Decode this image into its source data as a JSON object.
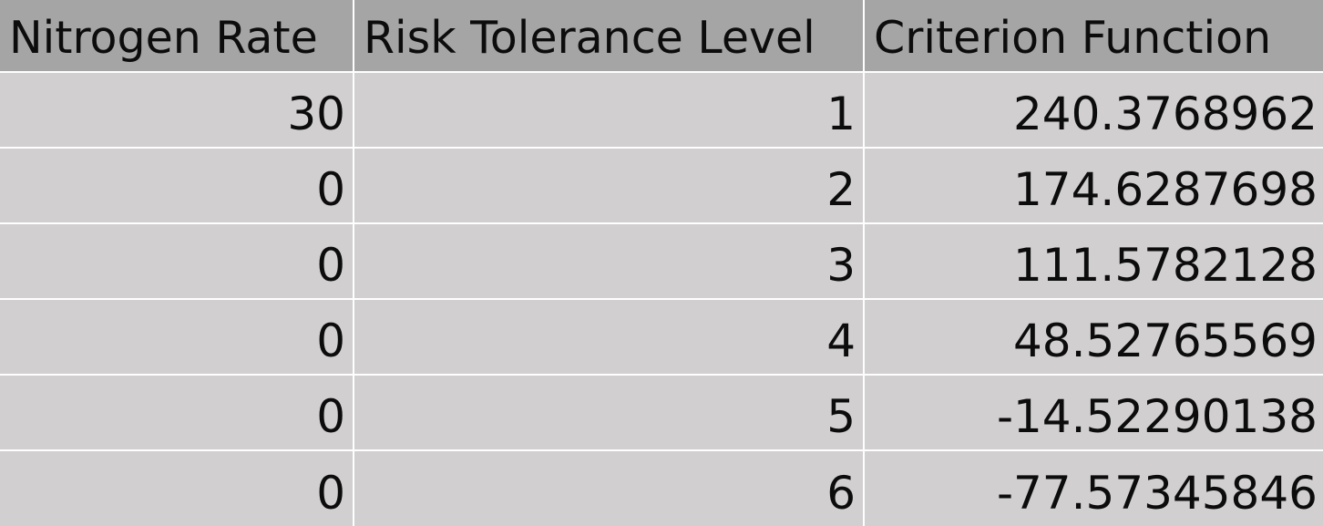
{
  "table": {
    "headers": [
      "Nitrogen Rate",
      "Risk Tolerance Level",
      "Criterion Function"
    ],
    "rows": [
      [
        "30",
        "1",
        "240.3768962"
      ],
      [
        "0",
        "2",
        "174.6287698"
      ],
      [
        "0",
        "3",
        "111.5782128"
      ],
      [
        "0",
        "4",
        "48.52765569"
      ],
      [
        "0",
        "5",
        "-14.52290138"
      ],
      [
        "0",
        "6",
        "-77.57345846"
      ]
    ]
  }
}
